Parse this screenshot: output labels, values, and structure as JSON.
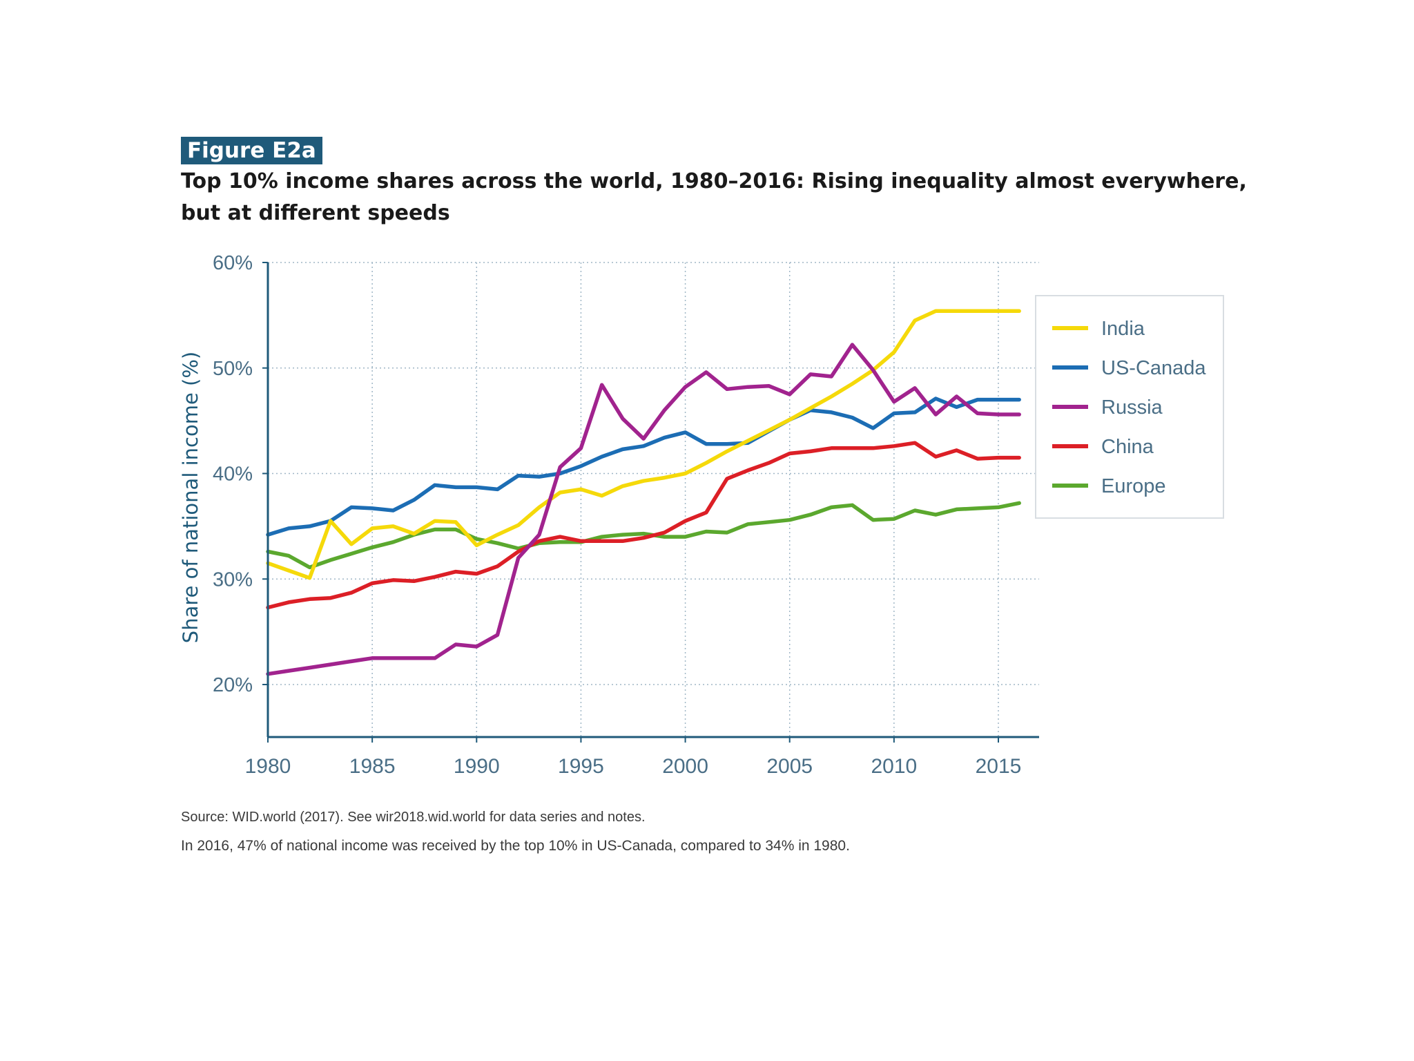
{
  "figure": {
    "label": "Figure E2a",
    "title_line1": "Top 10% income shares across the world, 1980–2016: Rising inequality almost everywhere,",
    "title_line2": "but at different speeds",
    "source": "Source: WID.world (2017). See wir2018.wid.world for data series and notes.",
    "note": "In 2016, 47% of national income was received by the top 10% in US-Canada, compared to 34% in 1980."
  },
  "chart_data": {
    "type": "line",
    "title": "Top 10% income shares across the world, 1980–2016",
    "xlabel": "",
    "ylabel": "Share of national income (%)",
    "xlim": [
      1980,
      2016.8
    ],
    "ylim": [
      15,
      60
    ],
    "xticks": [
      1980,
      1985,
      1990,
      1995,
      2000,
      2005,
      2010,
      2015
    ],
    "yticks": [
      {
        "value": 20,
        "label": "20%"
      },
      {
        "value": 30,
        "label": "30%"
      },
      {
        "value": 40,
        "label": "40%"
      },
      {
        "value": 50,
        "label": "50%"
      },
      {
        "value": 60,
        "label": "60%"
      }
    ],
    "grid": true,
    "legend_position": "right",
    "x": [
      1980,
      1981,
      1982,
      1983,
      1984,
      1985,
      1986,
      1987,
      1988,
      1989,
      1990,
      1991,
      1992,
      1993,
      1994,
      1995,
      1996,
      1997,
      1998,
      1999,
      2000,
      2001,
      2002,
      2003,
      2004,
      2005,
      2006,
      2007,
      2008,
      2009,
      2010,
      2011,
      2012,
      2013,
      2014,
      2015,
      2016
    ],
    "series": [
      {
        "name": "India",
        "color": "#f5d90a",
        "values": [
          31.5,
          30.8,
          30.1,
          35.5,
          33.3,
          34.8,
          35.0,
          34.3,
          35.5,
          35.4,
          33.2,
          34.2,
          35.1,
          36.8,
          38.2,
          38.5,
          37.9,
          38.8,
          39.3,
          39.6,
          40.0,
          41.0,
          42.1,
          43.1,
          44.1,
          45.1,
          46.2,
          47.3,
          48.5,
          49.8,
          51.5,
          54.5,
          55.4,
          55.4,
          55.4,
          55.4,
          55.4
        ]
      },
      {
        "name": "US-Canada",
        "color": "#1c6db4",
        "values": [
          34.2,
          34.8,
          35.0,
          35.5,
          36.8,
          36.7,
          36.5,
          37.5,
          38.9,
          38.7,
          38.7,
          38.5,
          39.8,
          39.7,
          40.0,
          40.7,
          41.6,
          42.3,
          42.6,
          43.4,
          43.9,
          42.8,
          42.8,
          42.9,
          44.0,
          45.1,
          46.0,
          45.8,
          45.3,
          44.3,
          45.7,
          45.8,
          47.1,
          46.3,
          47.0,
          47.0,
          47.0
        ]
      },
      {
        "name": "Russia",
        "color": "#a1238e",
        "values": [
          21.0,
          21.3,
          21.6,
          21.9,
          22.2,
          22.5,
          22.5,
          22.5,
          22.5,
          23.8,
          23.6,
          24.7,
          32.0,
          34.2,
          40.6,
          42.4,
          48.4,
          45.2,
          43.3,
          46.0,
          48.2,
          49.6,
          48.0,
          48.2,
          48.3,
          47.5,
          49.4,
          49.2,
          52.2,
          49.8,
          46.8,
          48.1,
          45.6,
          47.3,
          45.7,
          45.6,
          45.6
        ]
      },
      {
        "name": "China",
        "color": "#dc1f26",
        "values": [
          27.3,
          27.8,
          28.1,
          28.2,
          28.7,
          29.6,
          29.9,
          29.8,
          30.2,
          30.7,
          30.5,
          31.2,
          32.6,
          33.6,
          34.0,
          33.6,
          33.6,
          33.6,
          33.9,
          34.4,
          35.5,
          36.3,
          39.5,
          40.3,
          41.0,
          41.9,
          42.1,
          42.4,
          42.4,
          42.4,
          42.6,
          42.9,
          41.6,
          42.2,
          41.4,
          41.5,
          41.5
        ]
      },
      {
        "name": "Europe",
        "color": "#5ba82e",
        "values": [
          32.6,
          32.2,
          31.1,
          31.8,
          32.4,
          33.0,
          33.5,
          34.2,
          34.7,
          34.7,
          33.8,
          33.4,
          32.9,
          33.4,
          33.5,
          33.5,
          34.0,
          34.2,
          34.3,
          34.0,
          34.0,
          34.5,
          34.4,
          35.2,
          35.4,
          35.6,
          36.1,
          36.8,
          37.0,
          35.6,
          35.7,
          36.5,
          36.1,
          36.6,
          36.7,
          36.8,
          37.2
        ]
      }
    ]
  }
}
